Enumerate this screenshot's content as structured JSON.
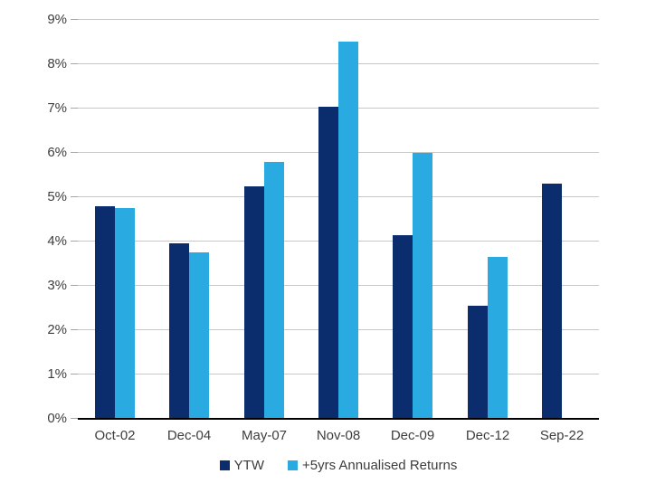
{
  "chart_data": {
    "type": "bar",
    "title": "",
    "xlabel": "",
    "ylabel": "",
    "categories": [
      "Oct-02",
      "Dec-04",
      "May-07",
      "Nov-08",
      "Dec-09",
      "Dec-12",
      "Sep-22"
    ],
    "series": [
      {
        "name": "YTW",
        "color": "#0b2d6d",
        "values": [
          4.8,
          3.95,
          5.25,
          7.05,
          4.15,
          2.55,
          5.3
        ]
      },
      {
        "name": "+5yrs Annualised Returns",
        "color": "#29abe2",
        "values": [
          4.75,
          3.75,
          5.8,
          8.5,
          6.0,
          3.65,
          null
        ]
      }
    ],
    "ylim": [
      0,
      9
    ],
    "ytick_step": 1,
    "ytick_suffix": "%",
    "grid": true,
    "legend_position": "bottom"
  }
}
